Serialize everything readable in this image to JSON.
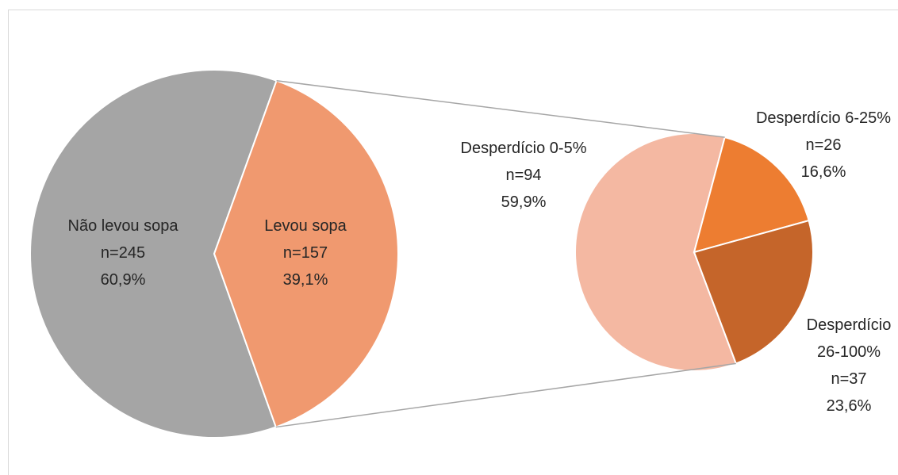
{
  "chart_data": [
    {
      "type": "pie",
      "categories": [
        "Não levou sopa",
        "Levou sopa"
      ],
      "values": [
        245,
        157
      ],
      "value_labels": [
        "n=245",
        "n=157"
      ],
      "percentages": [
        60.9,
        39.1
      ],
      "percentage_labels": [
        "60,9%",
        "39,1%"
      ],
      "colors": [
        "#a5a5a5",
        "#f0996f"
      ]
    },
    {
      "type": "pie",
      "categories": [
        "Desperdício 0-5%",
        "Desperdício 6-25%",
        "Desperdício 26-100%"
      ],
      "values": [
        94,
        26,
        37
      ],
      "value_labels": [
        "n=94",
        "n=26",
        "n=37"
      ],
      "percentages": [
        59.9,
        16.6,
        23.6
      ],
      "percentage_labels": [
        "59,9%",
        "16,6%",
        "23,6%"
      ],
      "colors": [
        "#f4b8a2",
        "#ed7d31",
        "#c5652a"
      ]
    }
  ]
}
